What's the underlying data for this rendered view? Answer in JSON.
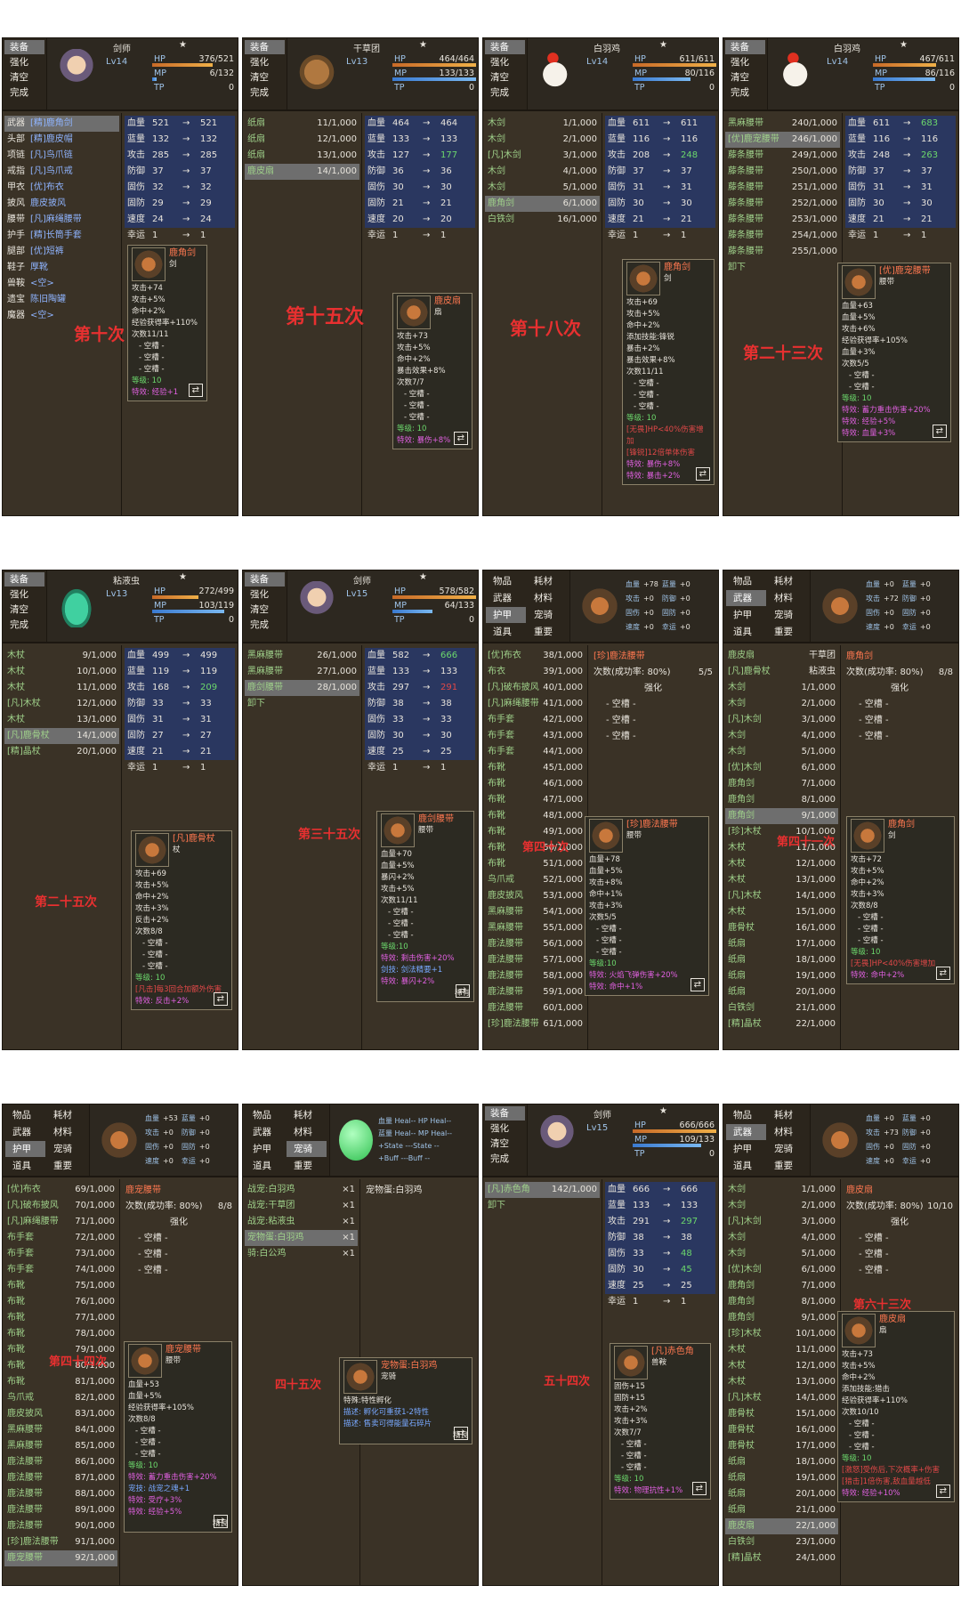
{
  "cmd": {
    "equip": "装备",
    "enhance": "强化",
    "clear": "清空",
    "done": "完成",
    "item": "物品",
    "mat": "耗材",
    "weapon": "武器",
    "material": "材料",
    "armor": "护甲",
    "pet": "宠骑",
    "tool": "道具",
    "important": "重要"
  },
  "stat": {
    "hp": "血量",
    "mp": "蓝量",
    "atk": "攻击",
    "def": "防御",
    "fixatk": "固伤",
    "fixdef": "固防",
    "spd": "速度",
    "luck": "幸运"
  },
  "labels": [
    "第十次",
    "第十五次",
    "第十八次",
    "第二十三次",
    "第二十五次",
    "第三十五次",
    "第四十次",
    "第四十一次",
    "第四十四次",
    "四十五次",
    "五十四次",
    "第六十三次"
  ],
  "p1": {
    "name": "剑师",
    "star": "★",
    "lv": "Lv14",
    "hp": "376/521",
    "mp": "6/132",
    "tp": "0",
    "slots": [
      [
        "武器",
        "[精]鹿角剑"
      ],
      [
        "头部",
        "[精]鹿皮帽"
      ],
      [
        "项链",
        "[凡]鸟爪链"
      ],
      [
        "戒指",
        "[凡]鸟爪戒"
      ],
      [
        "甲衣",
        "[优]布衣"
      ],
      [
        "披风",
        "鹿皮披风"
      ],
      [
        "腰带",
        "[凡]麻绳腰带"
      ],
      [
        "护手",
        "[精]长筒手套"
      ],
      [
        "腿部",
        "[优]短裤"
      ],
      [
        "鞋子",
        "厚靴"
      ],
      [
        "兽鞍",
        "<空>"
      ],
      [
        "遗宝",
        "陈旧陶罐"
      ],
      [
        "魔器",
        "<空>"
      ]
    ],
    "stats": [
      [
        "521",
        "521"
      ],
      [
        "132",
        "132"
      ],
      [
        "285",
        "285"
      ],
      [
        "37",
        "37"
      ],
      [
        "32",
        "32"
      ],
      [
        "29",
        "29"
      ],
      [
        "24",
        "24"
      ],
      [
        "1",
        "1"
      ]
    ],
    "tip": {
      "title": "鹿角剑",
      "type": "剑",
      "lines": [
        "攻击+74",
        "攻击+5%",
        "命中+2%",
        "经验获得率+110%",
        "次数11/11",
        "- 空槽 -",
        "- 空槽 -",
        "- 空槽 -",
        "等级: 10",
        "特效: 经验+1"
      ]
    }
  },
  "p2": {
    "name": "干草团",
    "star": "★",
    "lv": "Lv13",
    "hp": "464/464",
    "mp": "133/133",
    "tp": "0",
    "items": [
      [
        "纸扇",
        "11/1,000"
      ],
      [
        "纸扇",
        "12/1,000"
      ],
      [
        "纸扇",
        "13/1,000"
      ],
      [
        "鹿皮扇",
        "14/1,000"
      ]
    ],
    "stats": [
      [
        "464",
        "464"
      ],
      [
        "133",
        "133"
      ],
      [
        "127",
        "177"
      ],
      [
        "36",
        "36"
      ],
      [
        "30",
        "30"
      ],
      [
        "21",
        "21"
      ],
      [
        "20",
        "20"
      ],
      [
        "1",
        "1"
      ]
    ],
    "tip": {
      "title": "鹿皮扇",
      "type": "扇",
      "lines": [
        "攻击+73",
        "攻击+5%",
        "命中+2%",
        "暴击效果+8%",
        "次数7/7",
        "- 空槽 -",
        "- 空槽 -",
        "- 空槽 -",
        "等级: 10",
        "特效: 暴伤+8%"
      ]
    }
  },
  "p3": {
    "name": "白羽鸡",
    "star": "★",
    "lv": "Lv14",
    "hp": "611/611",
    "mp": "80/116",
    "tp": "0",
    "items": [
      [
        "木剑",
        "1/1,000"
      ],
      [
        "木剑",
        "2/1,000"
      ],
      [
        "[凡]木剑",
        "3/1,000"
      ],
      [
        "木剑",
        "4/1,000"
      ],
      [
        "木剑",
        "5/1,000"
      ],
      [
        "鹿角剑",
        "6/1,000"
      ],
      [
        "白铁剑",
        "16/1,000"
      ]
    ],
    "stats": [
      [
        "611",
        "611"
      ],
      [
        "116",
        "116"
      ],
      [
        "208",
        "248"
      ],
      [
        "37",
        "37"
      ],
      [
        "31",
        "31"
      ],
      [
        "30",
        "30"
      ],
      [
        "21",
        "21"
      ],
      [
        "1",
        "1"
      ]
    ],
    "tip": {
      "title": "鹿角剑",
      "type": "剑",
      "lines": [
        "攻击+69",
        "攻击+5%",
        "命中+2%",
        "添加技能:锋锐",
        "暴击+2%",
        "暴击效果+8%",
        "次数11/11",
        "- 空槽 -",
        "- 空槽 -",
        "- 空槽 -",
        "等级: 10",
        "[无畏]HP<40%伤害增加",
        "[锋锐]12倍单体伤害",
        "特效: 暴伤+8%",
        "特效: 暴击+2%"
      ]
    }
  },
  "p4": {
    "name": "白羽鸡",
    "star": "★",
    "lv": "Lv14",
    "hp": "467/611",
    "mp": "86/116",
    "tp": "0",
    "items": [
      [
        "黑麻腰带",
        "240/1,000"
      ],
      [
        "[优]鹿宠腰带",
        "246/1,000"
      ],
      [
        "藤条腰带",
        "249/1,000"
      ],
      [
        "藤条腰带",
        "250/1,000"
      ],
      [
        "藤条腰带",
        "251/1,000"
      ],
      [
        "藤条腰带",
        "252/1,000"
      ],
      [
        "藤条腰带",
        "253/1,000"
      ],
      [
        "藤条腰带",
        "254/1,000"
      ],
      [
        "藤条腰带",
        "255/1,000"
      ],
      [
        "卸下",
        ""
      ]
    ],
    "stats": [
      [
        "611",
        "683"
      ],
      [
        "116",
        "116"
      ],
      [
        "248",
        "263"
      ],
      [
        "37",
        "37"
      ],
      [
        "31",
        "31"
      ],
      [
        "30",
        "30"
      ],
      [
        "21",
        "21"
      ],
      [
        "1",
        "1"
      ]
    ],
    "tip": {
      "title": "[优]鹿宠腰带",
      "type": "腰带",
      "lines": [
        "血量+63",
        "血量+5%",
        "攻击+6%",
        "经验获得率+105%",
        "血量+3%",
        "次数5/5",
        "- 空槽 -",
        "- 空槽 -",
        "等级: 10",
        "特效: 蓄力重击伤害+20%",
        "特效: 经验+5%",
        "特效: 血量+3%"
      ]
    }
  },
  "p5": {
    "name": "粘液虫",
    "star": "★",
    "lv": "Lv13",
    "hp": "272/499",
    "mp": "103/119",
    "tp": "0",
    "items": [
      [
        "木杖",
        "9/1,000"
      ],
      [
        "木杖",
        "10/1,000"
      ],
      [
        "木杖",
        "11/1,000"
      ],
      [
        "[凡]木杖",
        "12/1,000"
      ],
      [
        "木杖",
        "13/1,000"
      ],
      [
        "[凡]鹿骨杖",
        "14/1,000"
      ],
      [
        "[精]晶杖",
        "20/1,000"
      ]
    ],
    "stats": [
      [
        "499",
        "499"
      ],
      [
        "119",
        "119"
      ],
      [
        "168",
        "209"
      ],
      [
        "33",
        "33"
      ],
      [
        "31",
        "31"
      ],
      [
        "27",
        "27"
      ],
      [
        "21",
        "21"
      ],
      [
        "1",
        "1"
      ]
    ],
    "tip": {
      "title": "[凡]鹿骨杖",
      "type": "杖",
      "lines": [
        "攻击+69",
        "攻击+5%",
        "命中+2%",
        "攻击+3%",
        "反击+2%",
        "次数8/8",
        "- 空槽 -",
        "- 空槽 -",
        "- 空槽 -",
        "等级: 10",
        "[凡击]每3回合加额外伤害",
        "特效: 反击+2%"
      ]
    }
  },
  "p6": {
    "name": "剑师",
    "star": "★",
    "lv": "Lv15",
    "hp": "578/582",
    "mp": "64/133",
    "tp": "0",
    "items": [
      [
        "黑麻腰带",
        "26/1,000"
      ],
      [
        "黑麻腰带",
        "27/1,000"
      ],
      [
        "鹿剑腰带",
        "28/1,000"
      ],
      [
        "卸下",
        ""
      ]
    ],
    "stats": [
      [
        "582",
        "666"
      ],
      [
        "133",
        "133"
      ],
      [
        "297",
        "291"
      ],
      [
        "38",
        "38"
      ],
      [
        "33",
        "33"
      ],
      [
        "30",
        "30"
      ],
      [
        "25",
        "25"
      ],
      [
        "1",
        "1"
      ]
    ],
    "tip": {
      "title": "鹿剑腰带",
      "type": "腰带",
      "lines": [
        "血量+70",
        "血量+5%",
        "暴闪+2%",
        "攻击+5%",
        "次数11/11",
        "- 空槽 -",
        "- 空槽 -",
        "- 空槽 -",
        "等级:10",
        "特效: 剩击伤害+20%",
        "剑技: 剑法精要+1",
        "特效: 暴闪+2%"
      ],
      "foot": "稀有"
    }
  },
  "p7": {
    "items": [
      [
        "[优]布衣",
        "38/1,000"
      ],
      [
        "布衣",
        "39/1,000"
      ],
      [
        "[凡]破布披风",
        "40/1,000"
      ],
      [
        "[凡]麻绳腰带",
        "41/1,000"
      ],
      [
        "布手套",
        "42/1,000"
      ],
      [
        "布手套",
        "43/1,000"
      ],
      [
        "布手套",
        "44/1,000"
      ],
      [
        "布靴",
        "45/1,000"
      ],
      [
        "布靴",
        "46/1,000"
      ],
      [
        "布靴",
        "47/1,000"
      ],
      [
        "布靴",
        "48/1,000"
      ],
      [
        "布靴",
        "49/1,000"
      ],
      [
        "布靴",
        "50/1,000"
      ],
      [
        "布靴",
        "51/1,000"
      ],
      [
        "鸟爪戒",
        "52/1,000"
      ],
      [
        "鹿皮披风",
        "53/1,000"
      ],
      [
        "黑麻腰带",
        "54/1,000"
      ],
      [
        "黑麻腰带",
        "55/1,000"
      ],
      [
        "鹿法腰带",
        "56/1,000"
      ],
      [
        "鹿法腰带",
        "57/1,000"
      ],
      [
        "鹿法腰带",
        "58/1,000"
      ],
      [
        "鹿法腰带",
        "59/1,000"
      ],
      [
        "鹿法腰带",
        "60/1,000"
      ],
      [
        "[珍]鹿法腰带",
        "61/1,000"
      ]
    ],
    "upg": {
      "title": "[珍]鹿法腰带",
      "count": "次数(成功率: 80%)",
      "countval": "5/5",
      "head": "强化",
      "slots": [
        "- 空槽 -",
        "- 空槽 -",
        "- 空槽 -"
      ]
    },
    "mini": {
      "hp": "+78",
      "mp": "+0",
      "atk": "+0",
      "def": "+0",
      "fa": "+0",
      "fd": "+0",
      "sp": "+0",
      "lk": "+0"
    },
    "tip": {
      "title": "[珍]鹿法腰带",
      "type": "腰带",
      "lines": [
        "血量+78",
        "血量+5%",
        "攻击+8%",
        "命中+1%",
        "攻击+3%",
        "次数5/5",
        "- 空槽 -",
        "- 空槽 -",
        "- 空槽 -",
        "等级:10",
        "特效: 火焰飞弹伤害+20%",
        "特效: 命中+1%"
      ]
    }
  },
  "p8": {
    "items": [
      [
        "鹿皮扇",
        "干草团"
      ],
      [
        "[凡]鹿骨杖",
        "粘液虫"
      ],
      [
        "木剑",
        "1/1,000"
      ],
      [
        "木剑",
        "2/1,000"
      ],
      [
        "[凡]木剑",
        "3/1,000"
      ],
      [
        "木剑",
        "4/1,000"
      ],
      [
        "木剑",
        "5/1,000"
      ],
      [
        "[优]木剑",
        "6/1,000"
      ],
      [
        "鹿角剑",
        "7/1,000"
      ],
      [
        "鹿角剑",
        "8/1,000"
      ],
      [
        "鹿角剑",
        "9/1,000"
      ],
      [
        "[珍]木杖",
        "10/1,000"
      ],
      [
        "木杖",
        "11/1,000"
      ],
      [
        "木杖",
        "12/1,000"
      ],
      [
        "木杖",
        "13/1,000"
      ],
      [
        "[凡]木杖",
        "14/1,000"
      ],
      [
        "木杖",
        "15/1,000"
      ],
      [
        "鹿骨杖",
        "16/1,000"
      ],
      [
        "纸扇",
        "17/1,000"
      ],
      [
        "纸扇",
        "18/1,000"
      ],
      [
        "纸扇",
        "19/1,000"
      ],
      [
        "纸扇",
        "20/1,000"
      ],
      [
        "白铁剑",
        "21/1,000"
      ],
      [
        "[精]晶杖",
        "22/1,000"
      ]
    ],
    "upg": {
      "title": "鹿角剑",
      "count": "次数(成功率: 80%)",
      "countval": "8/8",
      "head": "强化",
      "slots": [
        "- 空槽 -",
        "- 空槽 -",
        "- 空槽 -"
      ]
    },
    "mini": {
      "hp": "+0",
      "mp": "+0",
      "atk": "+72",
      "def": "+0",
      "fa": "+0",
      "fd": "+0",
      "sp": "+0",
      "lk": "+0"
    },
    "tip": {
      "title": "鹿角剑",
      "type": "剑",
      "lines": [
        "攻击+72",
        "攻击+5%",
        "命中+2%",
        "攻击+3%",
        "次数8/8",
        "- 空槽 -",
        "- 空槽 -",
        "- 空槽 -",
        "等级: 10",
        "[无畏]HP<40%伤害增加",
        "特效: 命中+2%"
      ]
    }
  },
  "p9": {
    "items": [
      [
        "[优]布衣",
        "69/1,000"
      ],
      [
        "[凡]破布披风",
        "70/1,000"
      ],
      [
        "[凡]麻绳腰带",
        "71/1,000"
      ],
      [
        "布手套",
        "72/1,000"
      ],
      [
        "布手套",
        "73/1,000"
      ],
      [
        "布手套",
        "74/1,000"
      ],
      [
        "布靴",
        "75/1,000"
      ],
      [
        "布靴",
        "76/1,000"
      ],
      [
        "布靴",
        "77/1,000"
      ],
      [
        "布靴",
        "78/1,000"
      ],
      [
        "布靴",
        "79/1,000"
      ],
      [
        "布靴",
        "80/1,000"
      ],
      [
        "布靴",
        "81/1,000"
      ],
      [
        "鸟爪戒",
        "82/1,000"
      ],
      [
        "鹿皮披风",
        "83/1,000"
      ],
      [
        "黑麻腰带",
        "84/1,000"
      ],
      [
        "黑麻腰带",
        "85/1,000"
      ],
      [
        "鹿法腰带",
        "86/1,000"
      ],
      [
        "鹿法腰带",
        "87/1,000"
      ],
      [
        "鹿法腰带",
        "88/1,000"
      ],
      [
        "鹿法腰带",
        "89/1,000"
      ],
      [
        "鹿法腰带",
        "90/1,000"
      ],
      [
        "[珍]鹿法腰带",
        "91/1,000"
      ],
      [
        "鹿宠腰带",
        "92/1,000"
      ]
    ],
    "upg": {
      "title": "鹿宠腰带",
      "count": "次数(成功率: 80%)",
      "countval": "8/8",
      "head": "强化",
      "slots": [
        "- 空槽 -",
        "- 空槽 -",
        "- 空槽 -"
      ]
    },
    "mini": {
      "hp": "+53",
      "mp": "+0",
      "atk": "+0",
      "def": "+0",
      "fa": "+0",
      "fd": "+0",
      "sp": "+0",
      "lk": "+0"
    },
    "tip": {
      "title": "鹿宠腰带",
      "type": "腰带",
      "lines": [
        "血量+53",
        "血量+5%",
        "经验获得率+105%",
        "次数8/8",
        "- 空槽 -",
        "- 空槽 -",
        "- 空槽 -",
        "等级: 10",
        "特效: 蓄力重击伤害+20%",
        "宠技: 战宠之魂+1",
        "特效: 受疗+3%",
        "特效: 经验+5%"
      ],
      "foot": "精良"
    }
  },
  "p10": {
    "items": [
      [
        "战宠:白羽鸡",
        "×1"
      ],
      [
        "战宠:干草团",
        "×1"
      ],
      [
        "战宠:粘液虫",
        "×1"
      ],
      [
        "宠物蛋:白羽鸡",
        "×1"
      ],
      [
        "骑:白公鸡",
        "×1"
      ]
    ],
    "right": "宠物蛋:白羽鸡",
    "mini": [
      "血量 Heal-- HP Heal--",
      "蓝量 Heal-- MP Heal--",
      "+State ---State --",
      "+Buff ---Buff --"
    ],
    "tip": {
      "title": "宠物蛋:白羽鸡",
      "type": "宠骑",
      "lines": [
        "特殊:特性孵化",
        "描述: 孵化可重获1-2特性",
        "描述: 售卖可得能量石碎片"
      ],
      "foot": "精良"
    }
  },
  "p11": {
    "name": "剑师",
    "star": "★",
    "lv": "Lv15",
    "hp": "666/666",
    "mp": "109/133",
    "tp": "0",
    "items": [
      [
        "[凡]赤色角",
        "142/1,000"
      ],
      [
        "卸下",
        ""
      ]
    ],
    "stats": [
      [
        "666",
        "666"
      ],
      [
        "133",
        "133"
      ],
      [
        "291",
        "297"
      ],
      [
        "38",
        "38"
      ],
      [
        "33",
        "48"
      ],
      [
        "30",
        "45"
      ],
      [
        "25",
        "25"
      ],
      [
        "1",
        "1"
      ]
    ],
    "tip": {
      "title": "[凡]赤色角",
      "type": "兽鞍",
      "lines": [
        "固伤+15",
        "固防+15",
        "攻击+2%",
        "攻击+3%",
        "次数7/7",
        "- 空槽 -",
        "- 空槽 -",
        "- 空槽 -",
        "等级: 10",
        "特效: 物理抗性+1%"
      ]
    }
  },
  "p12": {
    "items": [
      [
        "木剑",
        "1/1,000"
      ],
      [
        "木剑",
        "2/1,000"
      ],
      [
        "[凡]木剑",
        "3/1,000"
      ],
      [
        "木剑",
        "4/1,000"
      ],
      [
        "木剑",
        "5/1,000"
      ],
      [
        "[优]木剑",
        "6/1,000"
      ],
      [
        "鹿角剑",
        "7/1,000"
      ],
      [
        "鹿角剑",
        "8/1,000"
      ],
      [
        "鹿角剑",
        "9/1,000"
      ],
      [
        "[珍]木杖",
        "10/1,000"
      ],
      [
        "木杖",
        "11/1,000"
      ],
      [
        "木杖",
        "12/1,000"
      ],
      [
        "木杖",
        "13/1,000"
      ],
      [
        "[凡]木杖",
        "14/1,000"
      ],
      [
        "鹿骨杖",
        "15/1,000"
      ],
      [
        "鹿骨杖",
        "16/1,000"
      ],
      [
        "鹿骨杖",
        "17/1,000"
      ],
      [
        "纸扇",
        "18/1,000"
      ],
      [
        "纸扇",
        "19/1,000"
      ],
      [
        "纸扇",
        "20/1,000"
      ],
      [
        "纸扇",
        "21/1,000"
      ],
      [
        "鹿皮扇",
        "22/1,000"
      ],
      [
        "白铁剑",
        "23/1,000"
      ],
      [
        "[精]晶杖",
        "24/1,000"
      ]
    ],
    "upg": {
      "title": "鹿皮扇",
      "count": "次数(成功率: 80%)",
      "countval": "10/10",
      "head": "强化",
      "slots": [
        "- 空槽 -",
        "- 空槽 -",
        "- 空槽 -"
      ]
    },
    "mini": {
      "hp": "+0",
      "mp": "+0",
      "atk": "+73",
      "def": "+0",
      "fa": "+0",
      "fd": "+0",
      "sp": "+0",
      "lk": "+0"
    },
    "tip": {
      "title": "鹿皮扇",
      "type": "扇",
      "lines": [
        "攻击+73",
        "攻击+5%",
        "命中+2%",
        "添加技能:猎击",
        "经验获得率+110%",
        "次数10/10",
        "- 空槽 -",
        "- 空槽 -",
        "- 空槽 -",
        "等级: 10",
        "[激怒]受伤后,下次概率+伤害",
        "[猎击]1倍伤害,敌血量越低",
        "特效: 经验+10%"
      ]
    }
  }
}
